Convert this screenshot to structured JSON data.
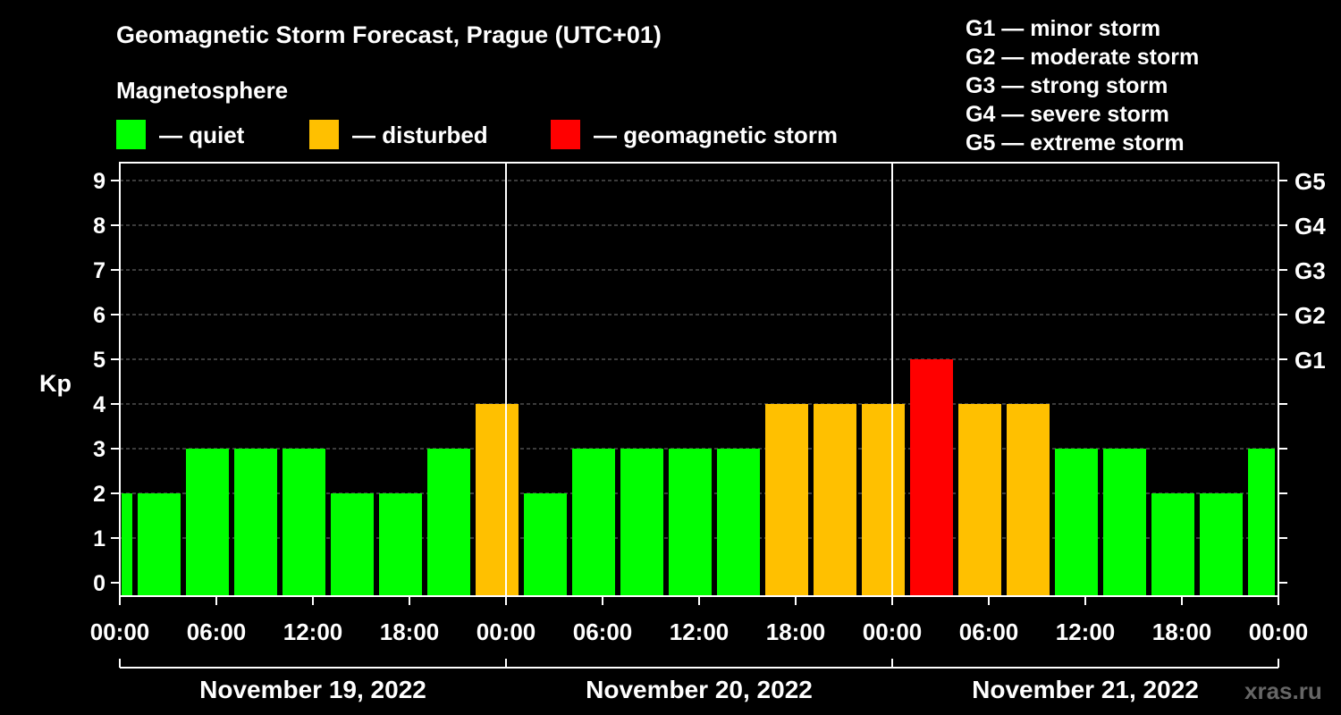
{
  "title": "Geomagnetic Storm Forecast, Prague (UTC+01)",
  "subtitle": "Magnetosphere",
  "legend": [
    {
      "label": "— quiet",
      "color": "#00ff00"
    },
    {
      "label": "— disturbed",
      "color": "#ffc000"
    },
    {
      "label": "— geomagnetic storm",
      "color": "#ff0000"
    }
  ],
  "storm_levels": [
    "G1 — minor storm",
    "G2 — moderate storm",
    "G3 — strong storm",
    "G4 — severe storm",
    "G5 — extreme storm"
  ],
  "watermark": "xras.ru",
  "chart_data": {
    "type": "bar",
    "ylabel": "Kp",
    "ylim": [
      0,
      9
    ],
    "yticks": [
      "0",
      "1",
      "2",
      "3",
      "4",
      "5",
      "6",
      "7",
      "8",
      "9"
    ],
    "right_axis": [
      {
        "value": 5,
        "label": "G1"
      },
      {
        "value": 6,
        "label": "G2"
      },
      {
        "value": 7,
        "label": "G3"
      },
      {
        "value": 8,
        "label": "G4"
      },
      {
        "value": 9,
        "label": "G5"
      }
    ],
    "xticks": [
      "00:00",
      "06:00",
      "12:00",
      "18:00",
      "00:00",
      "06:00",
      "12:00",
      "18:00",
      "00:00",
      "06:00",
      "12:00",
      "18:00",
      "00:00"
    ],
    "days": [
      "November 19, 2022",
      "November 20, 2022",
      "November 21, 2022"
    ],
    "grid": true,
    "colors": {
      "quiet": "#00ff00",
      "disturbed": "#ffc000",
      "storm": "#ff0000"
    },
    "bars": [
      {
        "start": "2022-11-19 00:00",
        "end": "2022-11-19 01:00",
        "kp": 2,
        "level": "quiet"
      },
      {
        "start": "2022-11-19 01:00",
        "end": "2022-11-19 04:00",
        "kp": 2,
        "level": "quiet"
      },
      {
        "start": "2022-11-19 04:00",
        "end": "2022-11-19 07:00",
        "kp": 3,
        "level": "quiet"
      },
      {
        "start": "2022-11-19 07:00",
        "end": "2022-11-19 10:00",
        "kp": 3,
        "level": "quiet"
      },
      {
        "start": "2022-11-19 10:00",
        "end": "2022-11-19 13:00",
        "kp": 3,
        "level": "quiet"
      },
      {
        "start": "2022-11-19 13:00",
        "end": "2022-11-19 16:00",
        "kp": 2,
        "level": "quiet"
      },
      {
        "start": "2022-11-19 16:00",
        "end": "2022-11-19 19:00",
        "kp": 2,
        "level": "quiet"
      },
      {
        "start": "2022-11-19 19:00",
        "end": "2022-11-19 22:00",
        "kp": 3,
        "level": "quiet"
      },
      {
        "start": "2022-11-19 22:00",
        "end": "2022-11-20 01:00",
        "kp": 4,
        "level": "disturbed"
      },
      {
        "start": "2022-11-20 01:00",
        "end": "2022-11-20 04:00",
        "kp": 2,
        "level": "quiet"
      },
      {
        "start": "2022-11-20 04:00",
        "end": "2022-11-20 07:00",
        "kp": 3,
        "level": "quiet"
      },
      {
        "start": "2022-11-20 07:00",
        "end": "2022-11-20 10:00",
        "kp": 3,
        "level": "quiet"
      },
      {
        "start": "2022-11-20 10:00",
        "end": "2022-11-20 13:00",
        "kp": 3,
        "level": "quiet"
      },
      {
        "start": "2022-11-20 13:00",
        "end": "2022-11-20 16:00",
        "kp": 3,
        "level": "quiet"
      },
      {
        "start": "2022-11-20 16:00",
        "end": "2022-11-20 19:00",
        "kp": 4,
        "level": "disturbed"
      },
      {
        "start": "2022-11-20 19:00",
        "end": "2022-11-20 22:00",
        "kp": 4,
        "level": "disturbed"
      },
      {
        "start": "2022-11-20 22:00",
        "end": "2022-11-21 01:00",
        "kp": 4,
        "level": "disturbed"
      },
      {
        "start": "2022-11-21 01:00",
        "end": "2022-11-21 04:00",
        "kp": 5,
        "level": "storm"
      },
      {
        "start": "2022-11-21 04:00",
        "end": "2022-11-21 07:00",
        "kp": 4,
        "level": "disturbed"
      },
      {
        "start": "2022-11-21 07:00",
        "end": "2022-11-21 10:00",
        "kp": 4,
        "level": "disturbed"
      },
      {
        "start": "2022-11-21 10:00",
        "end": "2022-11-21 13:00",
        "kp": 3,
        "level": "quiet"
      },
      {
        "start": "2022-11-21 13:00",
        "end": "2022-11-21 16:00",
        "kp": 3,
        "level": "quiet"
      },
      {
        "start": "2022-11-21 16:00",
        "end": "2022-11-21 19:00",
        "kp": 2,
        "level": "quiet"
      },
      {
        "start": "2022-11-21 19:00",
        "end": "2022-11-21 22:00",
        "kp": 2,
        "level": "quiet"
      },
      {
        "start": "2022-11-21 22:00",
        "end": "2022-11-22 00:00",
        "kp": 3,
        "level": "quiet"
      }
    ]
  }
}
